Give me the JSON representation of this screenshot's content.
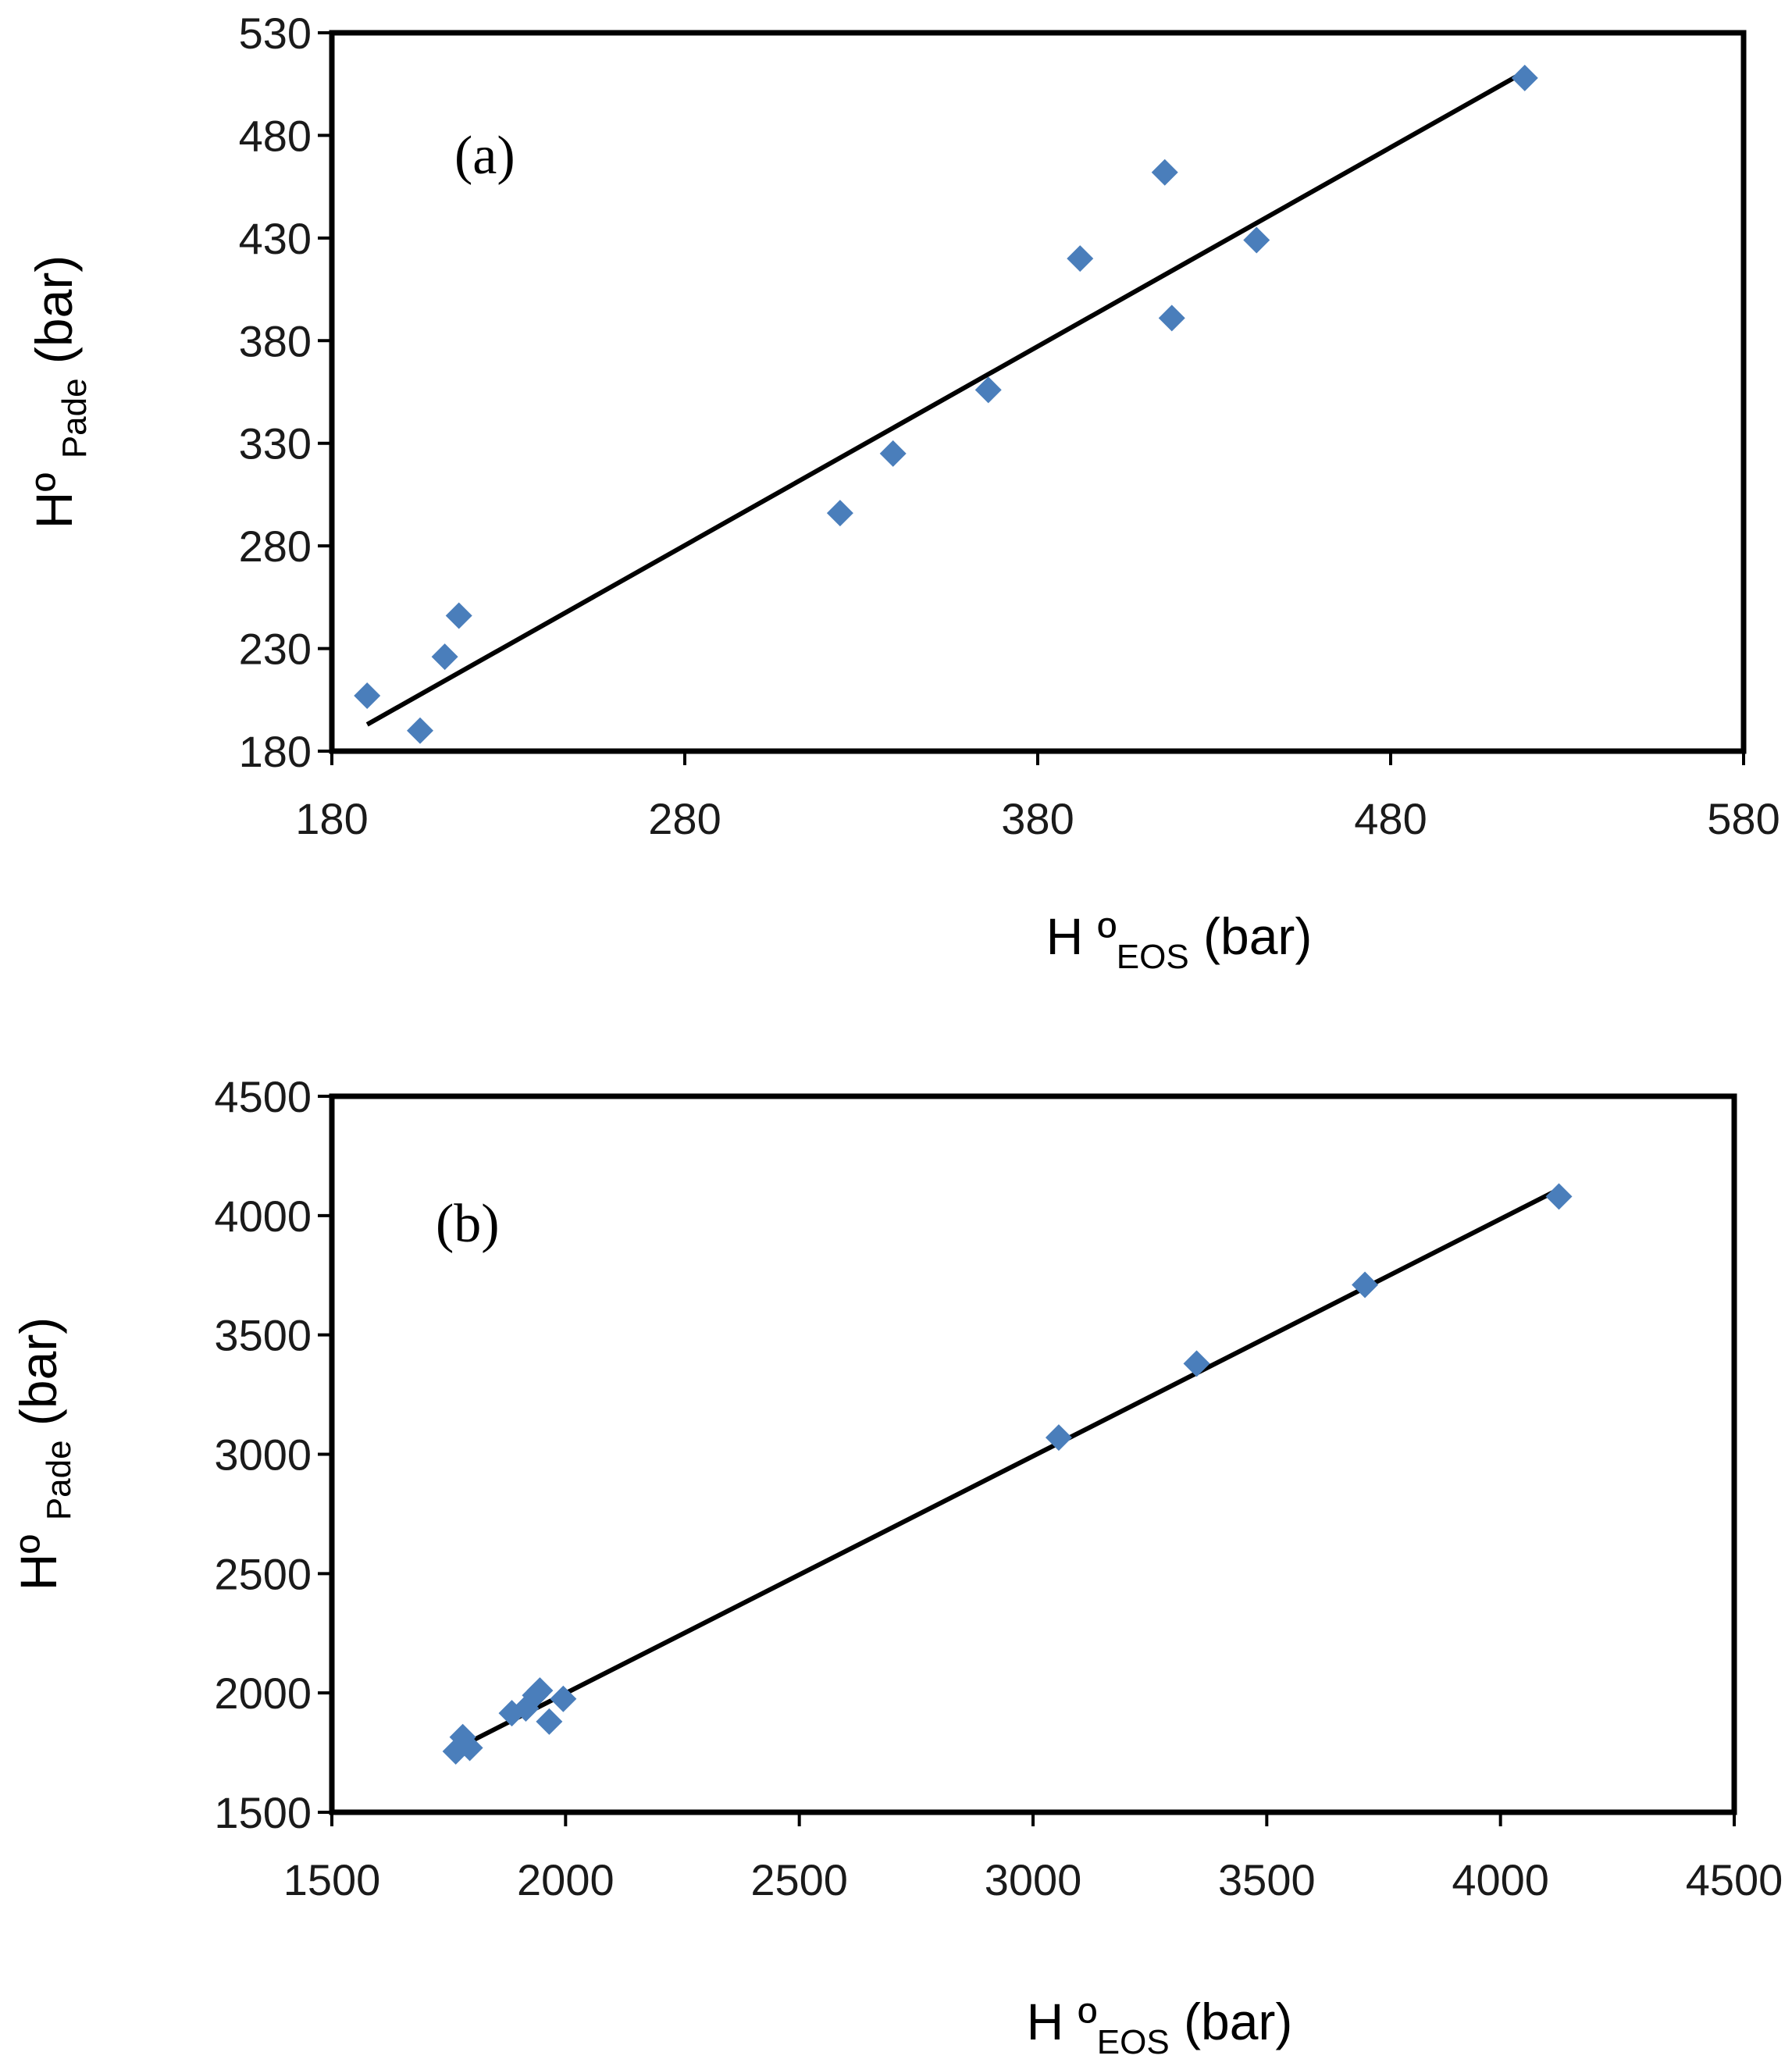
{
  "chart_data": [
    {
      "type": "scatter",
      "panel_label": "(a)",
      "x_title": {
        "main": "H º",
        "sub": "EOS",
        "unit": " (bar)"
      },
      "y_title": {
        "main": "Hº ",
        "sub": "Pade",
        "unit": " (bar)"
      },
      "xlim": [
        180,
        580
      ],
      "ylim": [
        180,
        530
      ],
      "xticks": [
        180,
        280,
        380,
        480,
        580
      ],
      "yticks": [
        180,
        230,
        280,
        330,
        380,
        430,
        480,
        530
      ],
      "series": [
        {
          "name": "data",
          "x": [
            190,
            205,
            212,
            216,
            324,
            339,
            366,
            392,
            416,
            418,
            442,
            518
          ],
          "y": [
            207,
            190,
            226,
            246,
            296,
            325,
            356,
            420,
            462,
            391,
            429,
            508
          ]
        }
      ],
      "fit_line": {
        "x": [
          190,
          518
        ],
        "y": [
          193,
          511
        ]
      },
      "marker_color": "#4a7ebb",
      "line_color": "#000000"
    },
    {
      "type": "scatter",
      "panel_label": "(b)",
      "x_title": {
        "main": "H º",
        "sub": "EOS",
        "unit": " (bar)"
      },
      "y_title": {
        "main": "Hº ",
        "sub": "Pade",
        "unit": " (bar)"
      },
      "xlim": [
        1500,
        4500
      ],
      "ylim": [
        1500,
        4500
      ],
      "xticks": [
        1500,
        2000,
        2500,
        3000,
        3500,
        4000,
        4500
      ],
      "yticks": [
        1500,
        2000,
        2500,
        3000,
        3500,
        4000,
        4500
      ],
      "series": [
        {
          "name": "data",
          "x": [
            1765,
            1780,
            1795,
            1885,
            1915,
            1935,
            1945,
            1965,
            1995,
            3055,
            3350,
            3710,
            4125
          ],
          "y": [
            1755,
            1815,
            1770,
            1915,
            1935,
            1990,
            2010,
            1880,
            1975,
            3070,
            3380,
            3710,
            4080
          ]
        }
      ],
      "fit_line": {
        "x": [
          1765,
          4125
        ],
        "y": [
          1765,
          4110
        ]
      },
      "marker_color": "#4a7ebb",
      "line_color": "#000000"
    }
  ]
}
